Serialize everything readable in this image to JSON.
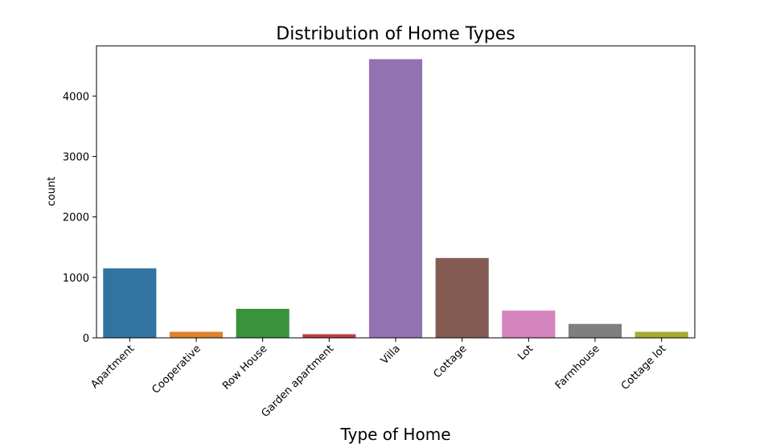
{
  "chart_data": {
    "type": "bar",
    "title": "Distribution of Home Types",
    "xlabel": "Type of Home",
    "ylabel": "count",
    "categories": [
      "Apartment",
      "Cooperative",
      "Row House",
      "Garden apartment",
      "Villa",
      "Cottage",
      "Lot",
      "Farmhouse",
      "Cottage lot"
    ],
    "values": [
      1150,
      100,
      480,
      60,
      4610,
      1320,
      450,
      230,
      100
    ],
    "colors": [
      "#3274a1",
      "#e1812c",
      "#3a923a",
      "#c03d3e",
      "#9372b2",
      "#845b53",
      "#d684bd",
      "#7f7f7f",
      "#a9aa35"
    ],
    "yticks": [
      0,
      1000,
      2000,
      3000,
      4000
    ],
    "ylim": [
      0,
      4830
    ],
    "grid": false
  }
}
